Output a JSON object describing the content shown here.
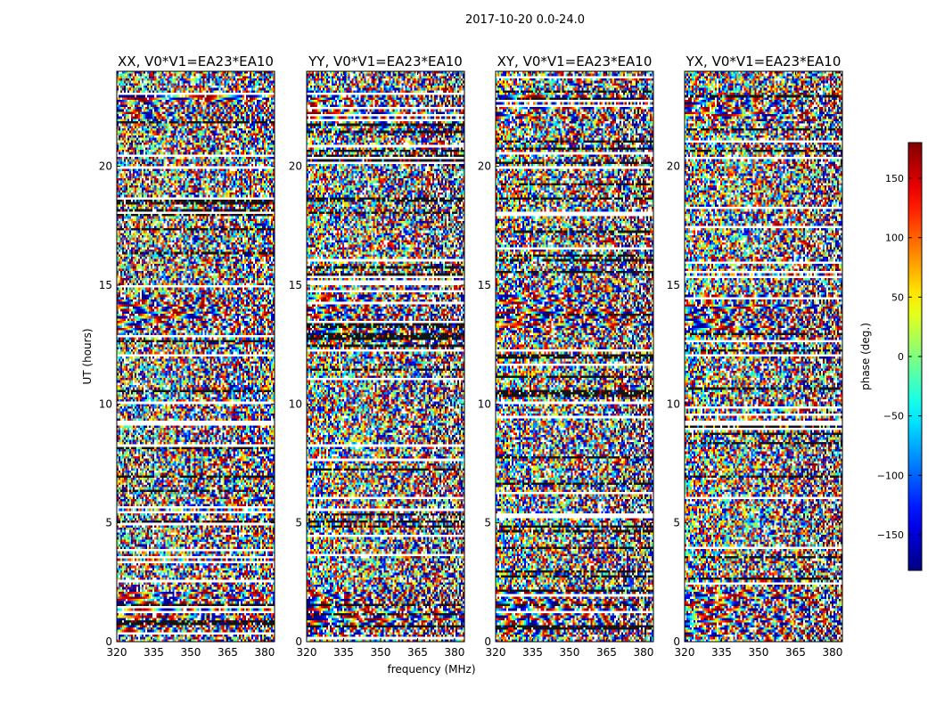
{
  "figure": {
    "suptitle": "2017-10-20 0.0-24.0",
    "xlabel": "frequency (MHz)",
    "ylabel": "UT (hours)"
  },
  "chart_data": {
    "type": "heatmap",
    "description": "waterfall phase plots, one per polarization product",
    "x_ticks": [
      320,
      335,
      350,
      365,
      380
    ],
    "y_ticks": [
      0,
      5,
      10,
      15,
      20
    ],
    "xlim": [
      320,
      384
    ],
    "ylim": [
      0,
      24
    ],
    "panels": [
      {
        "title": "XX, V0*V1=EA23*EA10",
        "seed": 11
      },
      {
        "title": "YY, V0*V1=EA23*EA10",
        "seed": 23
      },
      {
        "title": "XY, V0*V1=EA23*EA10",
        "seed": 37
      },
      {
        "title": "YX, V0*V1=EA23*EA10",
        "seed": 51
      }
    ],
    "colorbar": {
      "label": "phase (deg.)",
      "min": -180,
      "max": 180,
      "ticks": [
        150,
        100,
        50,
        0,
        -50,
        -100,
        -150
      ],
      "tick_labels": [
        "150",
        "100",
        "50",
        "0",
        "−50",
        "−100",
        "−150"
      ],
      "colormap": "jet"
    }
  }
}
